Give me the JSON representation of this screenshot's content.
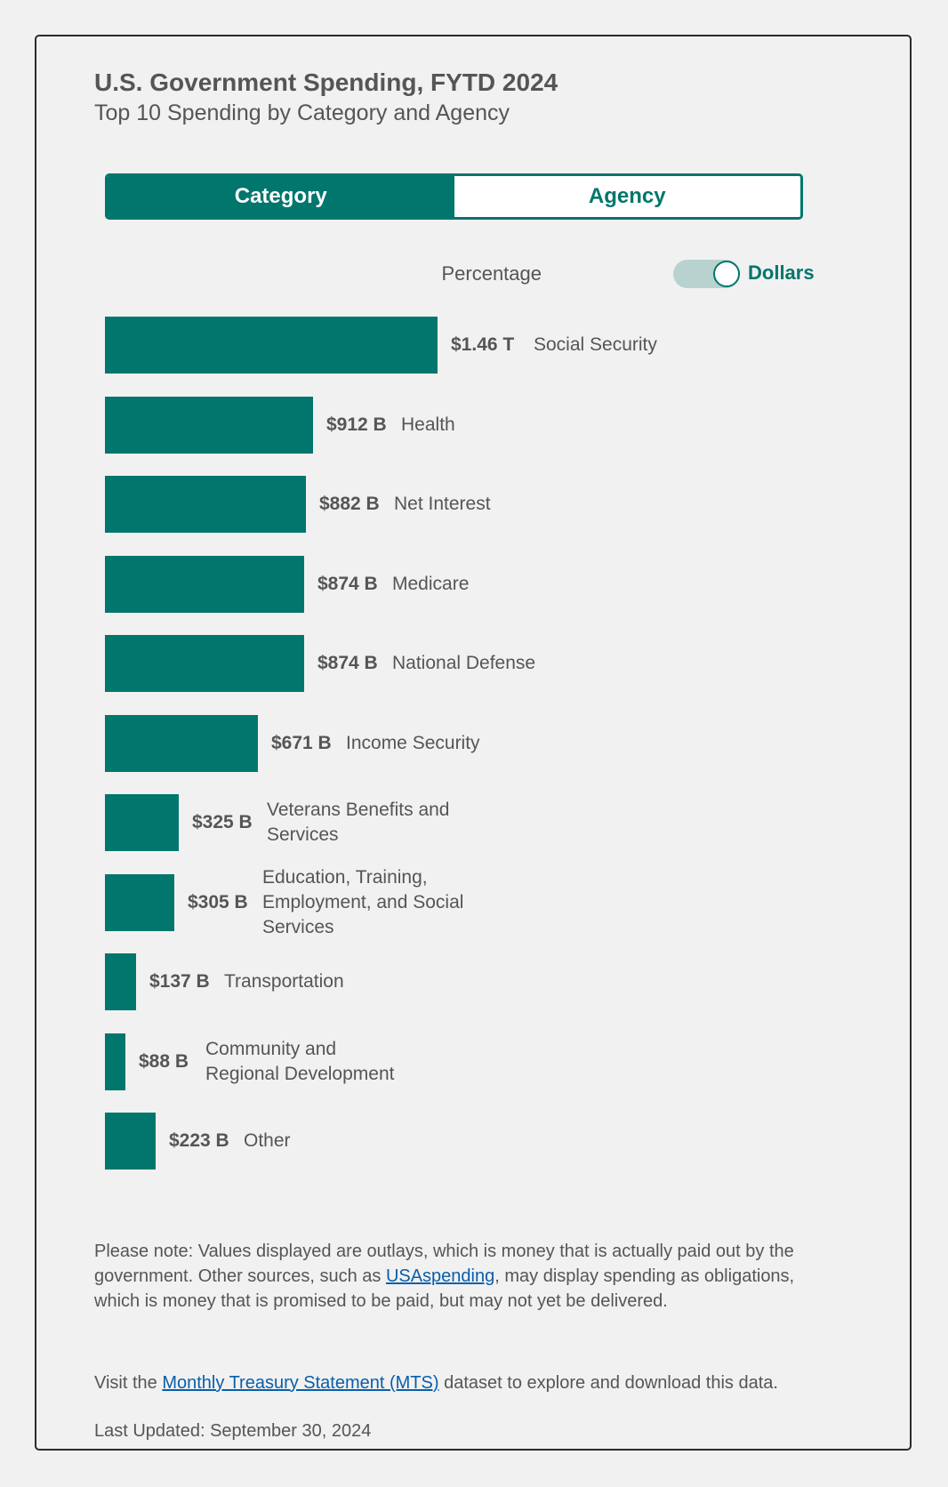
{
  "header": {
    "title": "U.S. Government Spending, FYTD 2024",
    "subtitle": "Top 10 Spending by Category and Agency"
  },
  "tabs": {
    "category": "Category",
    "agency": "Agency",
    "active": "Category"
  },
  "toggle": {
    "left_label": "Percentage",
    "right_label": "Dollars",
    "selected": "Dollars"
  },
  "colors": {
    "accent": "#00766c",
    "link": "#0a5eaa",
    "text": "#555555"
  },
  "chart_data": {
    "type": "bar",
    "orientation": "horizontal",
    "unit": "billions USD",
    "categories": [
      "Social Security",
      "Health",
      "Net Interest",
      "Medicare",
      "National Defense",
      "Income Security",
      "Veterans Benefits and Services",
      "Education, Training, Employment, and Social Services",
      "Transportation",
      "Community and Regional Development",
      "Other"
    ],
    "values": [
      1460,
      912,
      882,
      874,
      874,
      671,
      325,
      305,
      137,
      88,
      223
    ],
    "value_labels": [
      "$1.46 T",
      "$912 B",
      "$882 B",
      "$874 B",
      "$874 B",
      "$671 B",
      "$325 B",
      "$305 B",
      "$137 B",
      "$88 B",
      "$223 B"
    ]
  },
  "footer": {
    "note_prefix": "Please note: Values displayed are outlays, which is money that is actually paid out by the government. Other sources, such as ",
    "note_link": "USAspending",
    "note_suffix": ", may display spending as obligations, which is money that is promised to be paid, but may not yet be delivered.",
    "visit_prefix": "Visit the ",
    "visit_link": "Monthly Treasury Statement (MTS)",
    "visit_suffix": " dataset to explore and download this data.",
    "last_updated": "Last Updated: September 30, 2024"
  }
}
